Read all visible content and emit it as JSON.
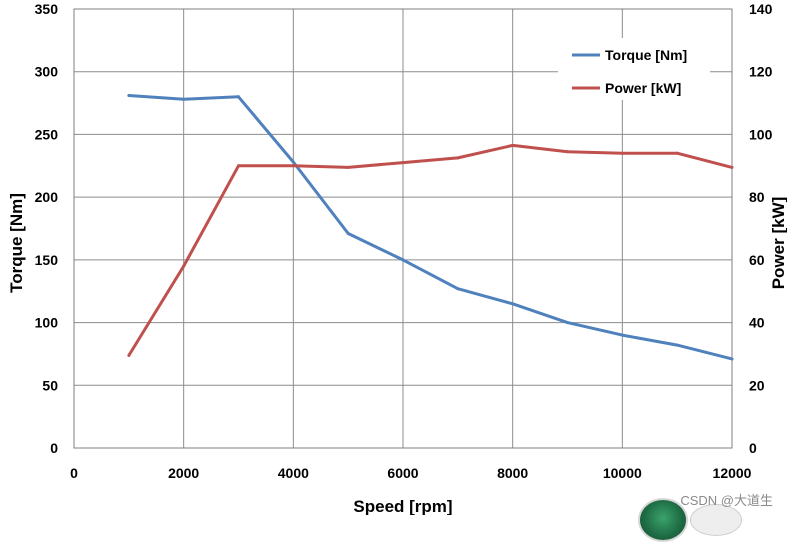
{
  "chart_data": {
    "type": "line",
    "title": "",
    "xlabel": "Speed [rpm]",
    "ylabel_left": "Torque [Nm]",
    "ylabel_right": "Power [kW]",
    "xlim": [
      0,
      12000
    ],
    "ylim_left": [
      0,
      350
    ],
    "ylim_right": [
      0,
      140
    ],
    "x_ticks": [
      0,
      2000,
      4000,
      6000,
      8000,
      10000,
      12000
    ],
    "y_ticks_left": [
      0,
      50,
      100,
      150,
      200,
      250,
      300,
      350
    ],
    "y_ticks_right": [
      0,
      20,
      40,
      60,
      80,
      100,
      120,
      140
    ],
    "grid": true,
    "legend_position": "top-right",
    "series": [
      {
        "name": "Torque [Nm]",
        "axis": "left",
        "color": "#4f81bd",
        "x": [
          1000,
          2000,
          3000,
          4000,
          5000,
          6000,
          7000,
          8000,
          9000,
          10000,
          11000,
          12000
        ],
        "values": [
          281,
          278,
          280,
          228,
          171,
          150,
          127,
          115,
          100,
          90,
          82,
          71
        ]
      },
      {
        "name": "Power [kW]",
        "axis": "right",
        "color": "#c0504d",
        "x": [
          1000,
          2000,
          3000,
          4000,
          5000,
          6000,
          7000,
          8000,
          9000,
          10000,
          11000,
          12000
        ],
        "values": [
          29.5,
          58,
          90,
          90,
          89.5,
          91,
          92.5,
          96.5,
          94.5,
          94,
          94,
          89.5
        ]
      }
    ]
  },
  "watermark": {
    "text": "CSDN @大道生"
  }
}
